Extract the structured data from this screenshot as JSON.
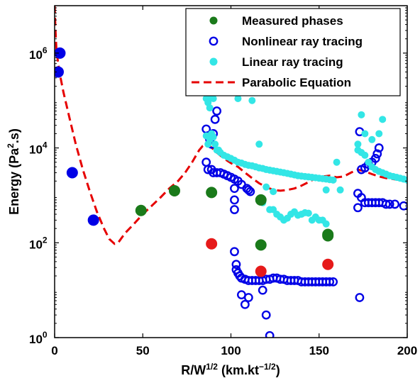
{
  "chart_data": {
    "type": "scatter",
    "xlabel_main": "R/W",
    "xlabel_sup": "1/2",
    "xlabel_unit_pre": " (km.kt",
    "xlabel_unit_sup": "−1/2",
    "xlabel_unit_post": ")",
    "ylabel_pre": "Energy (Pa",
    "ylabel_sup": "2",
    "ylabel_post": ".s)",
    "xlim": [
      0,
      200
    ],
    "ylim_log10": [
      0,
      7
    ],
    "yscale": "log",
    "x_ticks": [
      {
        "value": 0,
        "label": "0"
      },
      {
        "value": 50,
        "label": "50"
      },
      {
        "value": 100,
        "label": "100"
      },
      {
        "value": 150,
        "label": "150"
      },
      {
        "value": 200,
        "label": "200"
      }
    ],
    "y_ticks": [
      {
        "value": 1,
        "base": "10",
        "exp": "0"
      },
      {
        "value": 100,
        "base": "10",
        "exp": "2"
      },
      {
        "value": 10000,
        "base": "10",
        "exp": "4"
      },
      {
        "value": 1000000,
        "base": "10",
        "exp": "6"
      }
    ],
    "legend_position": "top-right",
    "series": [
      {
        "name": "Measured phases",
        "style": "filled-circle",
        "color": "#1a7a1a",
        "points": [
          [
            49,
            480
          ],
          [
            68,
            1250
          ],
          [
            89,
            1150
          ],
          [
            117,
            800
          ],
          [
            155,
            150
          ],
          [
            155,
            140
          ],
          [
            117,
            90
          ]
        ]
      },
      {
        "name": "Nonlinear ray tracing",
        "style": "open-circle",
        "color": "#0000e6",
        "points": [
          [
            86,
            25000
          ],
          [
            87,
            18000
          ],
          [
            88,
            15000
          ],
          [
            89,
            12000
          ],
          [
            90,
            20000
          ],
          [
            91,
            40000
          ],
          [
            92,
            60000
          ],
          [
            86,
            5000
          ],
          [
            87,
            3500
          ],
          [
            89,
            3500
          ],
          [
            90,
            3000
          ],
          [
            92,
            3000
          ],
          [
            94,
            3000
          ],
          [
            96,
            2800
          ],
          [
            98,
            2600
          ],
          [
            100,
            2400
          ],
          [
            102,
            2200
          ],
          [
            104,
            2000
          ],
          [
            106,
            1700
          ],
          [
            109,
            1400
          ],
          [
            110,
            1300
          ],
          [
            111,
            1200
          ],
          [
            102,
            1400
          ],
          [
            102,
            800
          ],
          [
            102,
            500
          ],
          [
            102,
            65
          ],
          [
            103,
            35
          ],
          [
            103,
            27
          ],
          [
            104,
            23
          ],
          [
            105,
            20
          ],
          [
            106,
            18
          ],
          [
            108,
            17
          ],
          [
            110,
            16
          ],
          [
            112,
            16
          ],
          [
            114,
            16
          ],
          [
            116,
            16
          ],
          [
            118,
            16
          ],
          [
            120,
            17
          ],
          [
            122,
            17
          ],
          [
            124,
            18
          ],
          [
            126,
            18
          ],
          [
            128,
            17
          ],
          [
            130,
            17
          ],
          [
            132,
            16
          ],
          [
            134,
            16
          ],
          [
            136,
            16
          ],
          [
            138,
            16
          ],
          [
            140,
            15
          ],
          [
            142,
            15
          ],
          [
            144,
            15
          ],
          [
            146,
            15
          ],
          [
            148,
            15
          ],
          [
            150,
            15
          ],
          [
            152,
            15
          ],
          [
            154,
            15
          ],
          [
            156,
            15
          ],
          [
            158,
            15
          ],
          [
            106,
            8
          ],
          [
            108,
            5
          ],
          [
            110,
            7
          ],
          [
            118,
            10
          ],
          [
            120,
            3
          ],
          [
            122,
            1.1
          ],
          [
            172,
            1100
          ],
          [
            172,
            550
          ],
          [
            174,
            900
          ],
          [
            176,
            700
          ],
          [
            178,
            700
          ],
          [
            180,
            700
          ],
          [
            182,
            700
          ],
          [
            184,
            700
          ],
          [
            186,
            700
          ],
          [
            188,
            650
          ],
          [
            190,
            650
          ],
          [
            193,
            650
          ],
          [
            198,
            600
          ],
          [
            173,
            7
          ],
          [
            173,
            22000
          ],
          [
            174,
            3500
          ],
          [
            176,
            3800
          ],
          [
            178,
            4500
          ],
          [
            180,
            5000
          ],
          [
            182,
            6000
          ],
          [
            183,
            7500
          ],
          [
            184,
            10000
          ]
        ]
      },
      {
        "name": "Linear ray tracing",
        "style": "filled-circle",
        "color": "#33e6e6",
        "points": [
          [
            86,
            110000
          ],
          [
            87,
            90000
          ],
          [
            88,
            70000
          ],
          [
            89,
            120000
          ],
          [
            90,
            110000
          ],
          [
            86,
            18000
          ],
          [
            87,
            12000
          ],
          [
            88,
            15000
          ],
          [
            89,
            20000
          ],
          [
            90,
            17000
          ],
          [
            91,
            12000
          ],
          [
            92,
            9000
          ],
          [
            93,
            9000
          ],
          [
            94,
            8000
          ],
          [
            96,
            7000
          ],
          [
            98,
            6500
          ],
          [
            100,
            6000
          ],
          [
            102,
            5500
          ],
          [
            104,
            5000
          ],
          [
            106,
            4800
          ],
          [
            108,
            4500
          ],
          [
            110,
            4300
          ],
          [
            112,
            4200
          ],
          [
            114,
            4000
          ],
          [
            116,
            3800
          ],
          [
            118,
            3700
          ],
          [
            120,
            3500
          ],
          [
            122,
            3400
          ],
          [
            124,
            3300
          ],
          [
            126,
            3200
          ],
          [
            128,
            3100
          ],
          [
            130,
            3000
          ],
          [
            132,
            2900
          ],
          [
            134,
            2800
          ],
          [
            136,
            2700
          ],
          [
            138,
            2600
          ],
          [
            140,
            2550
          ],
          [
            142,
            2500
          ],
          [
            144,
            2450
          ],
          [
            146,
            2400
          ],
          [
            148,
            2350
          ],
          [
            150,
            2300
          ],
          [
            152,
            2250
          ],
          [
            154,
            2200
          ],
          [
            156,
            2150
          ],
          [
            158,
            2100
          ],
          [
            104,
            110000
          ],
          [
            112,
            100000
          ],
          [
            116,
            12000
          ],
          [
            118,
            700
          ],
          [
            120,
            1500
          ],
          [
            122,
            500
          ],
          [
            124,
            500
          ],
          [
            126,
            400
          ],
          [
            128,
            350
          ],
          [
            130,
            300
          ],
          [
            132,
            330
          ],
          [
            134,
            400
          ],
          [
            136,
            450
          ],
          [
            138,
            380
          ],
          [
            140,
            400
          ],
          [
            142,
            430
          ],
          [
            144,
            420
          ],
          [
            146,
            300
          ],
          [
            148,
            350
          ],
          [
            150,
            300
          ],
          [
            152,
            300
          ],
          [
            154,
            250
          ],
          [
            124,
            1200
          ],
          [
            154,
            1300
          ],
          [
            162,
            1300
          ],
          [
            160,
            5000
          ],
          [
            172,
            12000
          ],
          [
            172,
            9000
          ],
          [
            174,
            8000
          ],
          [
            176,
            7000
          ],
          [
            178,
            5000
          ],
          [
            180,
            4000
          ],
          [
            182,
            3500
          ],
          [
            184,
            3200
          ],
          [
            186,
            3000
          ],
          [
            188,
            2800
          ],
          [
            190,
            2600
          ],
          [
            192,
            2500
          ],
          [
            194,
            2400
          ],
          [
            196,
            2300
          ],
          [
            198,
            2200
          ],
          [
            200,
            2100
          ],
          [
            174,
            50000
          ],
          [
            176,
            20000
          ],
          [
            180,
            15000
          ],
          [
            184,
            20000
          ],
          [
            186,
            40000
          ]
        ]
      },
      {
        "name": "Parabolic Equation",
        "style": "dashed-line",
        "color": "#e60000",
        "points": [
          [
            0,
            10000000
          ],
          [
            0.5,
            3000000
          ],
          [
            1,
            1200000
          ],
          [
            2,
            600000
          ],
          [
            3,
            350000
          ],
          [
            5,
            150000
          ],
          [
            8,
            50000
          ],
          [
            12,
            12000
          ],
          [
            16,
            3500
          ],
          [
            20,
            1200
          ],
          [
            24,
            450
          ],
          [
            28,
            200
          ],
          [
            31,
            120
          ],
          [
            34,
            95
          ],
          [
            36,
            100
          ],
          [
            40,
            160
          ],
          [
            45,
            250
          ],
          [
            50,
            400
          ],
          [
            55,
            600
          ],
          [
            60,
            900
          ],
          [
            65,
            1400
          ],
          [
            70,
            2000
          ],
          [
            74,
            3000
          ],
          [
            78,
            5000
          ],
          [
            82,
            9000
          ],
          [
            84,
            11000
          ],
          [
            86,
            11500
          ],
          [
            88,
            11000
          ],
          [
            92,
            8000
          ],
          [
            96,
            6000
          ],
          [
            100,
            4800
          ],
          [
            104,
            4000
          ],
          [
            108,
            3000
          ],
          [
            112,
            2300
          ],
          [
            116,
            1800
          ],
          [
            120,
            1500
          ],
          [
            124,
            1300
          ],
          [
            128,
            1250
          ],
          [
            132,
            1300
          ],
          [
            136,
            1400
          ],
          [
            140,
            1600
          ],
          [
            144,
            1900
          ],
          [
            148,
            2300
          ],
          [
            152,
            2500
          ],
          [
            156,
            2600
          ],
          [
            160,
            2400
          ],
          [
            164,
            2500
          ],
          [
            168,
            3000
          ],
          [
            172,
            3500
          ],
          [
            176,
            3200
          ],
          [
            180,
            2800
          ],
          [
            184,
            2500
          ],
          [
            188,
            2300
          ],
          [
            192,
            2200
          ],
          [
            196,
            2100
          ],
          [
            200,
            2000
          ]
        ]
      },
      {
        "name": "",
        "style": "filled-circle",
        "color": "#0000e6",
        "points": [
          [
            3,
            1000000
          ],
          [
            2,
            400000
          ],
          [
            10,
            3000
          ],
          [
            22,
            300
          ]
        ]
      },
      {
        "name": "",
        "style": "filled-circle",
        "color": "#e61a1a",
        "points": [
          [
            89,
            95
          ],
          [
            117,
            25
          ],
          [
            155,
            35
          ]
        ]
      }
    ]
  }
}
